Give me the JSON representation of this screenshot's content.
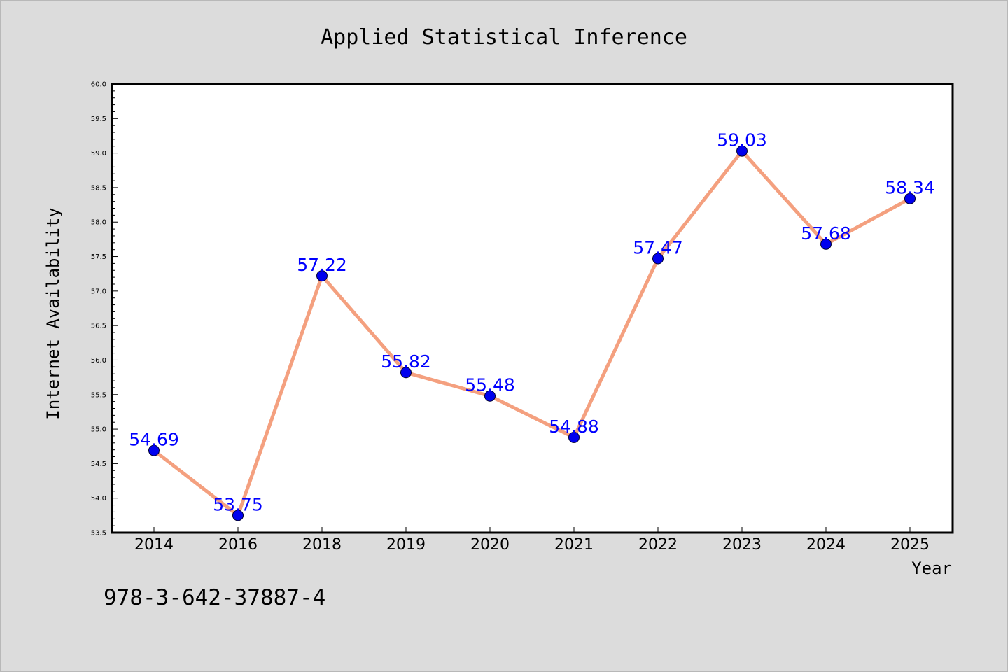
{
  "chart_data": {
    "type": "line",
    "title": "Applied Statistical Inference",
    "xlabel": "Year",
    "ylabel": "Internet Availability",
    "categories": [
      "2014",
      "2016",
      "2018",
      "2019",
      "2020",
      "2021",
      "2022",
      "2023",
      "2024",
      "2025"
    ],
    "series": [
      {
        "values": [
          54.69,
          53.75,
          57.22,
          55.82,
          55.48,
          54.88,
          57.47,
          59.03,
          57.68,
          58.34
        ]
      }
    ],
    "data_labels": [
      "54.69",
      "53.75",
      "57.22",
      "55.82",
      "55.48",
      "54.88",
      "57.47",
      "59.03",
      "57.68",
      "58.34"
    ],
    "ylim": [
      53.5,
      60.0
    ],
    "yticks": [
      "53.5",
      "54.0",
      "54.5",
      "55.0",
      "55.5",
      "56.0",
      "56.5",
      "57.0",
      "57.5",
      "58.0",
      "58.5",
      "59.0",
      "59.5",
      "60.0"
    ],
    "grid": false,
    "legend": "none"
  },
  "footer": {
    "isbn": "978-3-642-37887-4"
  },
  "colors": {
    "line": "#f4a07f",
    "marker": "#0000ee",
    "label": "#0000ff",
    "background": "#dcdcdc",
    "plot_background": "#ffffff"
  }
}
